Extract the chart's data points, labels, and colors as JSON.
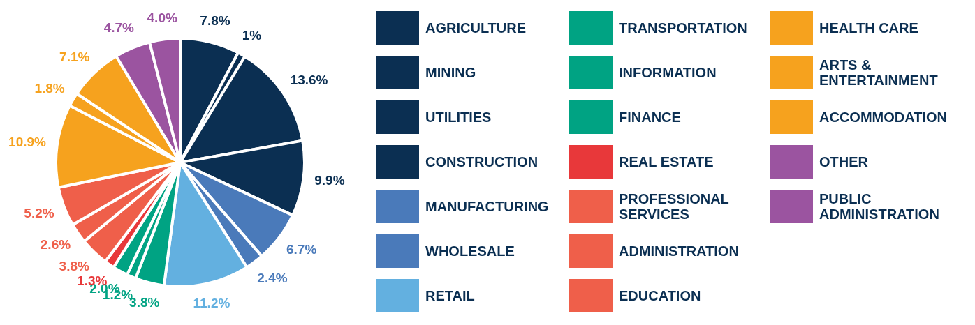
{
  "chart_data": {
    "type": "pie",
    "categories": [
      "AGRICULTURE",
      "MINING",
      "UTILITIES",
      "CONSTRUCTION",
      "MANUFACTURING",
      "WHOLESALE",
      "RETAIL",
      "TRANSPORTATION",
      "INFORMATION",
      "FINANCE",
      "REAL ESTATE",
      "PROFESSIONAL SERVICES",
      "ADMINISTRATION",
      "EDUCATION",
      "HEALTH CARE",
      "ARTS & ENTERTAINMENT",
      "ACCOMMODATION",
      "OTHER",
      "PUBLIC ADMINISTRATION"
    ],
    "values": [
      7.8,
      1,
      13.6,
      9.9,
      6.7,
      2.4,
      11.2,
      3.8,
      1.2,
      2.0,
      1.3,
      3.8,
      2.6,
      5.2,
      10.9,
      1.8,
      7.1,
      4.7,
      4.0
    ],
    "colors": [
      "#0b2f52",
      "#0b2f52",
      "#0b2f52",
      "#0b2f52",
      "#4a7aba",
      "#4a7aba",
      "#63b0e0",
      "#00a383",
      "#00a383",
      "#00a383",
      "#e8383a",
      "#ef5f4a",
      "#ef5f4a",
      "#ef5f4a",
      "#f6a21e",
      "#f6a21e",
      "#f6a21e",
      "#9b54a0",
      "#9b54a0"
    ],
    "data_labels": true,
    "value_labels": [
      "7.8%",
      "1%",
      "13.6%",
      "9.9%",
      "6.7%",
      "2.4%",
      "11.2%",
      "3.8%",
      "1.2%",
      "2.0%",
      "1.3%",
      "3.8%",
      "2.6%",
      "5.2%",
      "10.9%",
      "1.8%",
      "7.1%",
      "4.7%",
      "4.0%"
    ],
    "legend": "right"
  }
}
